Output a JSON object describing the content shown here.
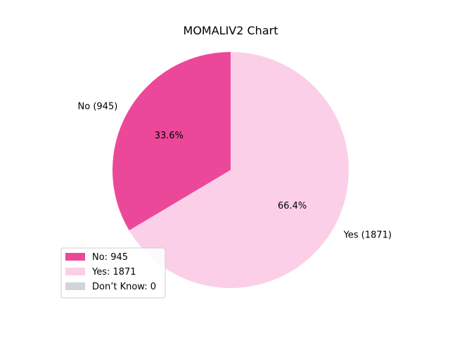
{
  "chart_data": {
    "type": "pie",
    "title": "MOMALIV2 Chart",
    "slices": [
      {
        "label": "No (945)",
        "value": 945,
        "pct_label": "33.6%",
        "color": "#ec4899"
      },
      {
        "label": "Yes (1871)",
        "value": 1871,
        "pct_label": "66.4%",
        "color": "#fbcfe8"
      }
    ],
    "legend": {
      "placement": "lower-left",
      "entries": [
        {
          "text": "No: 945",
          "color": "#ec4899"
        },
        {
          "text": "Yes: 1871",
          "color": "#fbcfe8"
        },
        {
          "text": "Don’t Know: 0",
          "color": "#d1d5db"
        }
      ]
    },
    "start_angle_deg": 90,
    "direction": "counterclockwise"
  }
}
